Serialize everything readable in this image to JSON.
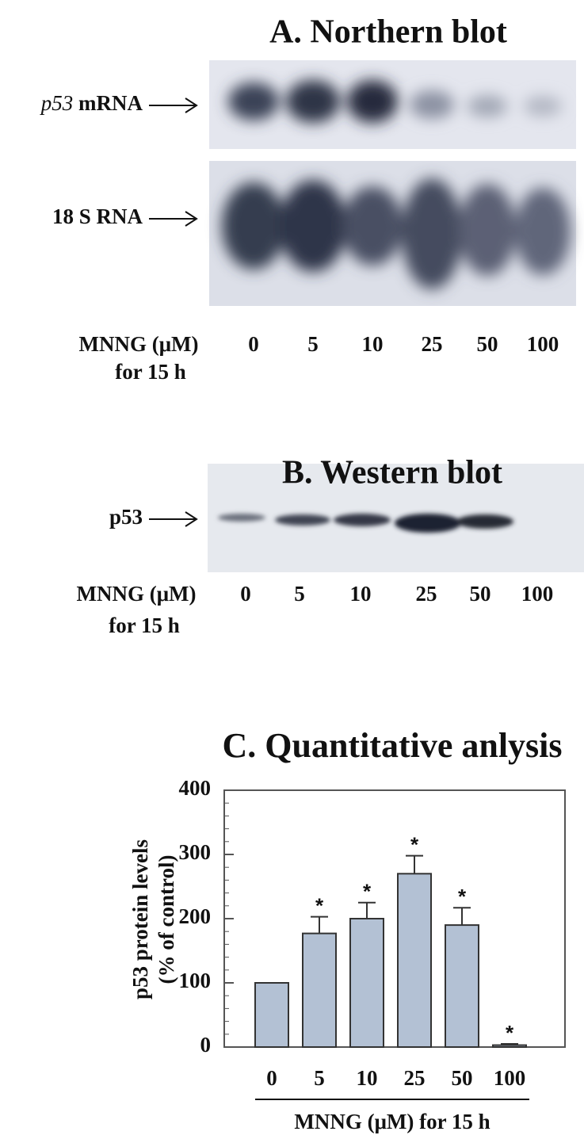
{
  "northern": {
    "title": "A. Northern blot",
    "probe1_gene": "p53",
    "probe1": "mRNA",
    "probe2": "18 S RNA",
    "lanes": [
      "0",
      "5",
      "10",
      "25",
      "50",
      "100"
    ],
    "treatment": "MNNG (μM)",
    "duration": "for 15 h"
  },
  "western": {
    "title": "B. Western blot",
    "probe": "p53",
    "lanes": [
      "0",
      "5",
      "10",
      "25",
      "50",
      "100"
    ],
    "treatment": "MNNG (μM)",
    "duration": "for 15 h"
  },
  "chart_data": {
    "type": "bar",
    "title": "C. Quantitative anlysis",
    "y_label": [
      "p53 protein levels",
      "(% of control)"
    ],
    "x_label": "MNNG (μM) for 15 h",
    "categories": [
      "0",
      "5",
      "10",
      "25",
      "50",
      "100"
    ],
    "values": [
      100,
      177,
      200,
      270,
      190,
      3
    ],
    "errors": [
      0,
      26,
      25,
      28,
      27,
      2
    ],
    "significance": [
      null,
      "*",
      "*",
      "*",
      "*",
      "*"
    ],
    "color": "#b3c1d4",
    "ylim": [
      0,
      400
    ],
    "yticks": [
      0,
      100,
      200,
      300,
      400
    ],
    "yminor_step": 20
  }
}
